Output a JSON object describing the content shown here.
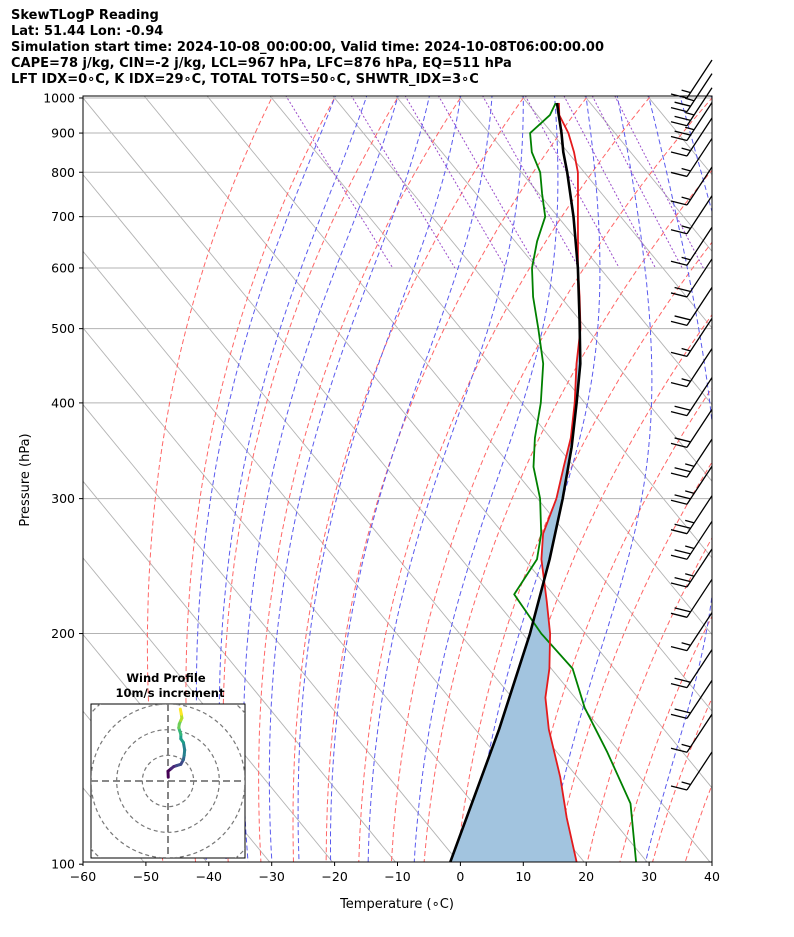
{
  "header": {
    "title": "SkewTLogP Reading",
    "location": "Lat: 51.44   Lon: -0.94",
    "times": "Simulation start time: 2024-10-08_00:00:00, Valid time: 2024-10-08T06:00:00.00",
    "indices_1": "CAPE=78 j/kg, CIN=-2 j/kg, LCL=967 hPa, LFC=876 hPa, EQ=511 hPa",
    "indices_2": "LFT IDX=0∘C, K IDX=29∘C, TOTAL TOTS=50∘C, SHWTR_IDX=3∘C"
  },
  "colors": {
    "temperature": "#e41a1c",
    "dewpoint": "#008000",
    "parcel": "#000000",
    "cape_fill": "#a2c4df",
    "dry_adiabat": "#ff6666",
    "moist_adiabat": "#5a5aee",
    "mixing_ratio": "#9b4dca",
    "isotherm": "#b3b3b3"
  },
  "chart_data": {
    "type": "line",
    "xlabel": "Temperature (∘C)",
    "ylabel": "Pressure (hPa)",
    "xlim": [
      -60,
      40
    ],
    "ylim": [
      1040,
      100
    ],
    "yscale": "log",
    "skew": true,
    "grid": true,
    "x_ticks": [
      "−60",
      "−50",
      "−40",
      "−30",
      "−20",
      "−10",
      "0",
      "10",
      "20",
      "30",
      "40"
    ],
    "y_ticks": [
      "100",
      "200",
      "300",
      "400",
      "500",
      "600",
      "700",
      "800",
      "900",
      "1000"
    ],
    "temperature_profile": [
      {
        "p": 985,
        "t": 15.0
      },
      {
        "p": 950,
        "t": 13.5
      },
      {
        "p": 900,
        "t": 12.6
      },
      {
        "p": 850,
        "t": 11.0
      },
      {
        "p": 800,
        "t": 9.0
      },
      {
        "p": 750,
        "t": 6.2
      },
      {
        "p": 700,
        "t": 3.2
      },
      {
        "p": 650,
        "t": 0.0
      },
      {
        "p": 600,
        "t": -3.5
      },
      {
        "p": 550,
        "t": -7.0
      },
      {
        "p": 500,
        "t": -11.0
      },
      {
        "p": 450,
        "t": -16.2
      },
      {
        "p": 400,
        "t": -21.6
      },
      {
        "p": 360,
        "t": -26.8
      },
      {
        "p": 330,
        "t": -31.7
      },
      {
        "p": 300,
        "t": -37.0
      },
      {
        "p": 270,
        "t": -43.7
      },
      {
        "p": 250,
        "t": -47.3
      },
      {
        "p": 220,
        "t": -52.0
      },
      {
        "p": 200,
        "t": -55.6
      },
      {
        "p": 180,
        "t": -60.3
      },
      {
        "p": 165,
        "t": -64.7
      },
      {
        "p": 150,
        "t": -68.3
      },
      {
        "p": 130,
        "t": -72.7
      },
      {
        "p": 115,
        "t": -77.0
      },
      {
        "p": 100,
        "t": -81.4
      }
    ],
    "dewpoint_profile": [
      {
        "p": 985,
        "t": 14.5
      },
      {
        "p": 950,
        "t": 12.0
      },
      {
        "p": 900,
        "t": 6.5
      },
      {
        "p": 850,
        "t": 4.3
      },
      {
        "p": 800,
        "t": 3.0
      },
      {
        "p": 750,
        "t": 0.5
      },
      {
        "p": 700,
        "t": -2.0
      },
      {
        "p": 650,
        "t": -6.5
      },
      {
        "p": 600,
        "t": -10.8
      },
      {
        "p": 550,
        "t": -14.4
      },
      {
        "p": 500,
        "t": -17.7
      },
      {
        "p": 450,
        "t": -21.5
      },
      {
        "p": 400,
        "t": -27.0
      },
      {
        "p": 360,
        "t": -32.5
      },
      {
        "p": 330,
        "t": -36.5
      },
      {
        "p": 300,
        "t": -39.6
      },
      {
        "p": 270,
        "t": -44.0
      },
      {
        "p": 250,
        "t": -48.0
      },
      {
        "p": 225,
        "t": -56.2
      },
      {
        "p": 200,
        "t": -57.0
      },
      {
        "p": 180,
        "t": -56.6
      },
      {
        "p": 160,
        "t": -59.8
      },
      {
        "p": 140,
        "t": -62.0
      },
      {
        "p": 120,
        "t": -65.0
      },
      {
        "p": 100,
        "t": -72.0
      }
    ],
    "parcel_profile": [
      {
        "p": 985,
        "t": 14.7
      },
      {
        "p": 950,
        "t": 13.4
      },
      {
        "p": 900,
        "t": 11.5
      },
      {
        "p": 850,
        "t": 9.3
      },
      {
        "p": 800,
        "t": 7.3
      },
      {
        "p": 700,
        "t": 2.5
      },
      {
        "p": 600,
        "t": -3.5
      },
      {
        "p": 511,
        "t": -10.2
      },
      {
        "p": 450,
        "t": -15.6
      },
      {
        "p": 400,
        "t": -21.3
      },
      {
        "p": 350,
        "t": -27.9
      },
      {
        "p": 300,
        "t": -36.0
      },
      {
        "p": 250,
        "t": -46.0
      },
      {
        "p": 200,
        "t": -58.8
      },
      {
        "p": 150,
        "t": -76.2
      },
      {
        "p": 100,
        "t": -101.7
      }
    ],
    "wind_barbs": [
      {
        "p": 1000,
        "speed_kt": 15
      },
      {
        "p": 960,
        "speed_kt": 25
      },
      {
        "p": 920,
        "speed_kt": 25
      },
      {
        "p": 880,
        "speed_kt": 25
      },
      {
        "p": 840,
        "speed_kt": 15
      },
      {
        "p": 790,
        "speed_kt": 15
      },
      {
        "p": 725,
        "speed_kt": 15
      },
      {
        "p": 665,
        "speed_kt": 15
      },
      {
        "p": 605,
        "speed_kt": 15
      },
      {
        "p": 550,
        "speed_kt": 20
      },
      {
        "p": 505,
        "speed_kt": 20
      },
      {
        "p": 460,
        "speed_kt": 15
      },
      {
        "p": 420,
        "speed_kt": 15
      },
      {
        "p": 385,
        "speed_kt": 20
      },
      {
        "p": 350,
        "speed_kt": 20
      },
      {
        "p": 320,
        "speed_kt": 25
      },
      {
        "p": 295,
        "speed_kt": 25
      },
      {
        "p": 270,
        "speed_kt": 25
      },
      {
        "p": 250,
        "speed_kt": 25
      },
      {
        "p": 230,
        "speed_kt": 25
      },
      {
        "p": 210,
        "speed_kt": 20
      },
      {
        "p": 190,
        "speed_kt": 15
      },
      {
        "p": 170,
        "speed_kt": 20
      },
      {
        "p": 155,
        "speed_kt": 20
      },
      {
        "p": 140,
        "speed_kt": 15
      },
      {
        "p": 125,
        "speed_kt": 15
      }
    ],
    "hodograph": {
      "title": "Wind Profile",
      "subtitle": "10m/s increment",
      "ring_step_ms": 10,
      "max_ms": 30,
      "points": [
        [
          0.1,
          1.5
        ],
        [
          0.0,
          3.8
        ],
        [
          1.2,
          4.8
        ],
        [
          2.2,
          5.6
        ],
        [
          3.4,
          6.0
        ],
        [
          5.0,
          6.5
        ],
        [
          6.0,
          8.3
        ],
        [
          6.3,
          10.0
        ],
        [
          6.5,
          12.1
        ],
        [
          6.0,
          15.0
        ],
        [
          5.0,
          16.4
        ],
        [
          5.0,
          18.2
        ],
        [
          4.2,
          20.7
        ],
        [
          4.4,
          22.2
        ],
        [
          5.0,
          23.6
        ],
        [
          5.4,
          24.5
        ],
        [
          5.2,
          26.0
        ],
        [
          4.8,
          28.0
        ]
      ]
    }
  }
}
